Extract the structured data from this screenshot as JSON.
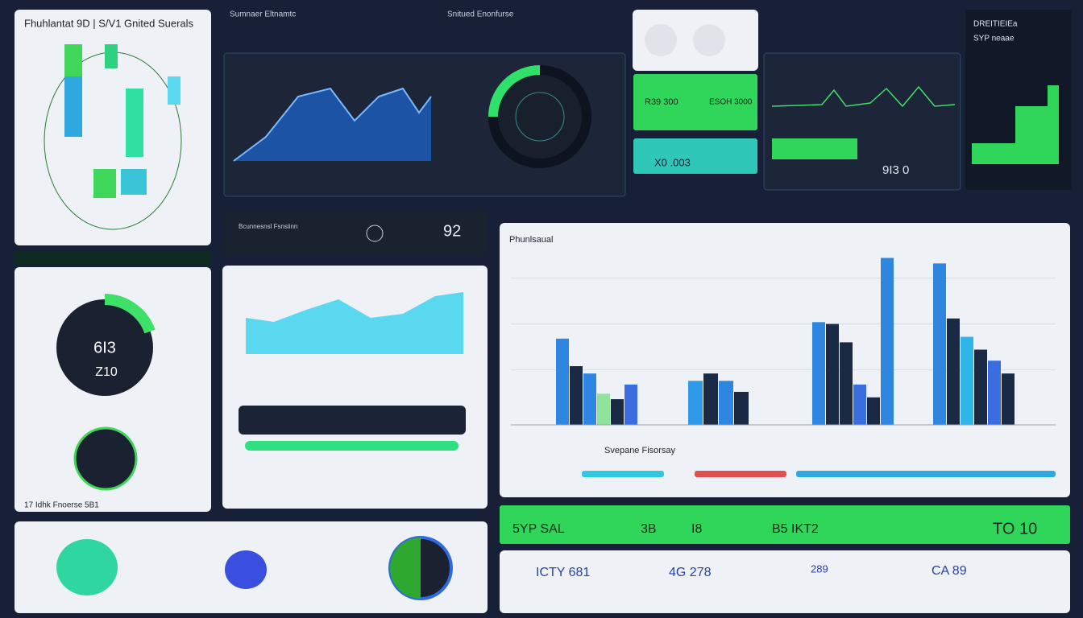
{
  "header": {
    "title": "Fhuhlantat 9D | S/V1 Gnited Suerals",
    "subtitle": "Sumnaer Eltnamtc",
    "tagline": "Snitued Enonfurse"
  },
  "gauge_panel": {
    "value": "6I3",
    "sub": "Z10",
    "footer": "17 Idhk Fnoerse 5B1"
  },
  "strip": {
    "label": "Bcunnesnsl Fsnsiinn",
    "value": "92"
  },
  "cards": {
    "green_left": "R39 300",
    "green_right": "ESOH 3000",
    "teal": "X0 .003",
    "line_value": "9I3 0",
    "right_title": "DREITIEIEa",
    "right_sub": "SYP neaae"
  },
  "banner": {
    "left": "5YP SAL",
    "mid1": "3B",
    "mid2": "I8",
    "mid3": "B5 IKT2",
    "right": "TO 10"
  },
  "footer_row": {
    "a": "ICTY 681",
    "b": "4G 278",
    "c": "289",
    "d": "CA 89"
  },
  "chart_data": {
    "type": "bar",
    "title": "Phunlsaual",
    "xlabel": "Svepane Fisorsay",
    "ylim": [
      0,
      100
    ],
    "grid": true,
    "groups": [
      {
        "values": [
          47,
          32,
          28,
          17,
          14,
          22
        ],
        "colors": [
          "#2f86e0",
          "#1b2a44",
          "#2f86e0",
          "#8fe39a",
          "#1b2a44",
          "#3a6de0"
        ]
      },
      {
        "values": [
          24,
          28,
          24,
          18
        ],
        "colors": [
          "#2f9be8",
          "#1b2a44",
          "#2f86e0",
          "#1b2a44"
        ]
      },
      {
        "values": [
          56,
          55,
          45,
          22,
          15,
          91
        ],
        "colors": [
          "#2f86e0",
          "#1b2a44",
          "#1b2a44",
          "#3a6de0",
          "#1b2a44",
          "#2f86e0"
        ]
      },
      {
        "values": [
          88,
          58,
          48,
          41,
          35,
          28
        ],
        "colors": [
          "#2f86e0",
          "#1b2a44",
          "#2fb6e8",
          "#1b2a44",
          "#3a6de0",
          "#1b2a44"
        ]
      }
    ]
  }
}
